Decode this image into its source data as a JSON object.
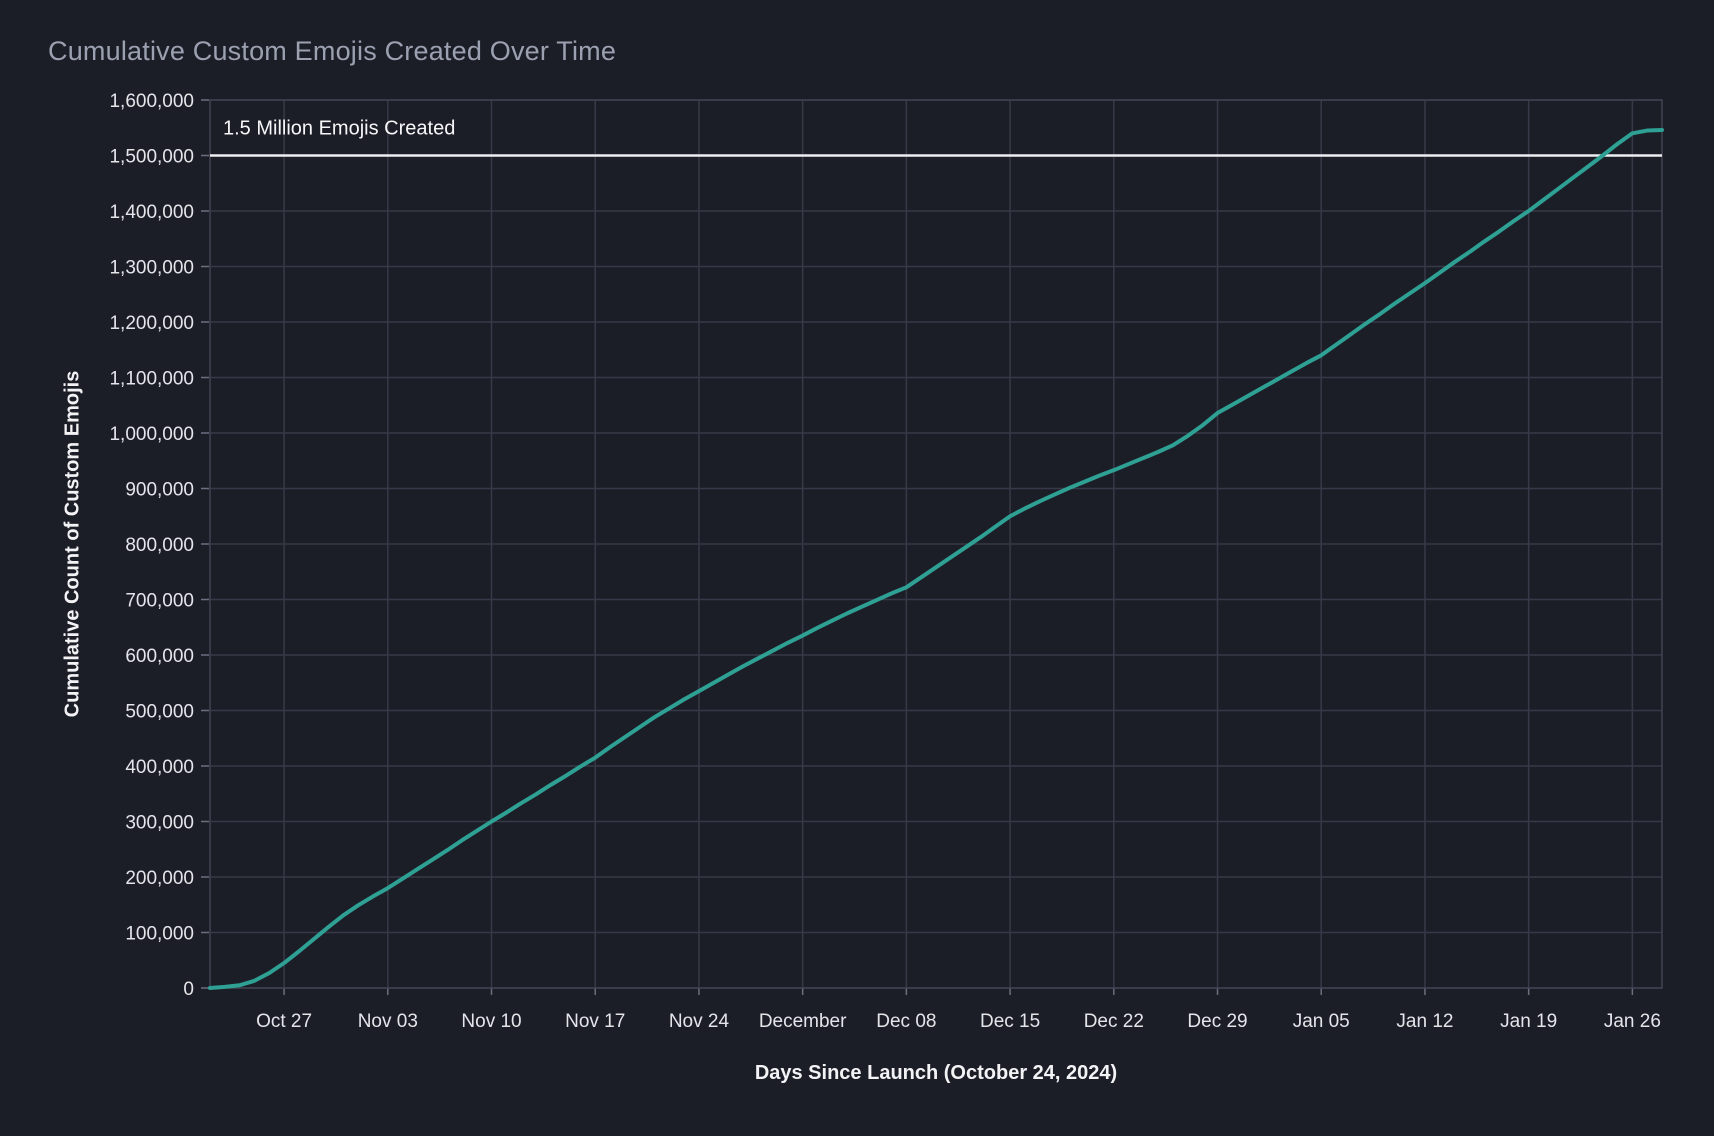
{
  "chart": {
    "title": "Cumulative Custom Emojis Created Over Time",
    "x_axis_title": "Days Since Launch (October 24, 2024)",
    "y_axis_title": "Cumulative Count of Custom Emojis",
    "annotation_label": "1.5 Million Emojis Created",
    "colors": {
      "background": "#1c1e27",
      "grid": "#373948",
      "spine": "#414352",
      "tick_mark": "#6b6e7e",
      "tick_label": "#e4e5ea",
      "title": "#9ba1b1",
      "axis_title": "#f3f3f6",
      "annotation": "#f6f6f8",
      "reference_line": "#eceef2",
      "series": "#2ea094"
    }
  },
  "chart_data": {
    "type": "line",
    "title": "Cumulative Custom Emojis Created Over Time",
    "xlabel": "Days Since Launch (October 24, 2024)",
    "ylabel": "Cumulative Count of Custom Emojis",
    "ylim": [
      0,
      1600000
    ],
    "y_tick_step": 100000,
    "grid": true,
    "legend": "none",
    "reference_line": {
      "y": 1500000,
      "label": "1.5 Million Emojis Created"
    },
    "x_ticks": [
      {
        "index": 5,
        "label": "Oct 27"
      },
      {
        "index": 12,
        "label": "Nov 03"
      },
      {
        "index": 19,
        "label": "Nov 10"
      },
      {
        "index": 26,
        "label": "Nov 17"
      },
      {
        "index": 33,
        "label": "Nov 24"
      },
      {
        "index": 40,
        "label": "December"
      },
      {
        "index": 47,
        "label": "Dec 08"
      },
      {
        "index": 54,
        "label": "Dec 15"
      },
      {
        "index": 61,
        "label": "Dec 22"
      },
      {
        "index": 68,
        "label": "Dec 29"
      },
      {
        "index": 75,
        "label": "Jan 05"
      },
      {
        "index": 82,
        "label": "Jan 12"
      },
      {
        "index": 89,
        "label": "Jan 19"
      },
      {
        "index": 96,
        "label": "Jan 26"
      }
    ],
    "series": [
      {
        "name": "Cumulative Custom Emojis",
        "color": "#2ea094",
        "dates": [
          "Oct 22",
          "Oct 23",
          "Oct 24",
          "Oct 25",
          "Oct 26",
          "Oct 27",
          "Oct 28",
          "Oct 29",
          "Oct 30",
          "Oct 31",
          "Nov 01",
          "Nov 02",
          "Nov 03",
          "Nov 04",
          "Nov 05",
          "Nov 06",
          "Nov 07",
          "Nov 08",
          "Nov 09",
          "Nov 10",
          "Nov 11",
          "Nov 12",
          "Nov 13",
          "Nov 14",
          "Nov 15",
          "Nov 16",
          "Nov 17",
          "Nov 18",
          "Nov 19",
          "Nov 20",
          "Nov 21",
          "Nov 22",
          "Nov 23",
          "Nov 24",
          "Nov 25",
          "Nov 26",
          "Nov 27",
          "Nov 28",
          "Nov 29",
          "Nov 30",
          "Dec 01",
          "Dec 02",
          "Dec 03",
          "Dec 04",
          "Dec 05",
          "Dec 06",
          "Dec 07",
          "Dec 08",
          "Dec 09",
          "Dec 10",
          "Dec 11",
          "Dec 12",
          "Dec 13",
          "Dec 14",
          "Dec 15",
          "Dec 16",
          "Dec 17",
          "Dec 18",
          "Dec 19",
          "Dec 20",
          "Dec 21",
          "Dec 22",
          "Dec 23",
          "Dec 24",
          "Dec 25",
          "Dec 26",
          "Dec 27",
          "Dec 28",
          "Dec 29",
          "Dec 30",
          "Dec 31",
          "Jan 01",
          "Jan 02",
          "Jan 03",
          "Jan 04",
          "Jan 05",
          "Jan 06",
          "Jan 07",
          "Jan 08",
          "Jan 09",
          "Jan 10",
          "Jan 11",
          "Jan 12",
          "Jan 13",
          "Jan 14",
          "Jan 15",
          "Jan 16",
          "Jan 17",
          "Jan 18",
          "Jan 19",
          "Jan 20",
          "Jan 21",
          "Jan 22",
          "Jan 23",
          "Jan 24",
          "Jan 25",
          "Jan 26",
          "Jan 27",
          "Jan 28"
        ],
        "values": [
          0,
          2000,
          5000,
          13000,
          27000,
          45000,
          66000,
          88000,
          110000,
          131000,
          149000,
          165000,
          180000,
          197000,
          214000,
          231000,
          248000,
          266000,
          283000,
          300000,
          316000,
          333000,
          349000,
          366000,
          382000,
          399000,
          415000,
          434000,
          452000,
          470000,
          488000,
          504000,
          520000,
          535000,
          550000,
          565000,
          580000,
          594000,
          608000,
          622000,
          635000,
          649000,
          662000,
          675000,
          687000,
          699000,
          711000,
          722000,
          740000,
          758000,
          776000,
          794000,
          812000,
          831000,
          850000,
          864000,
          877000,
          889000,
          901000,
          912000,
          923000,
          933000,
          944000,
          955000,
          966000,
          978000,
          995000,
          1014000,
          1036000,
          1051000,
          1066000,
          1081000,
          1096000,
          1111000,
          1126000,
          1140000,
          1159000,
          1178000,
          1197000,
          1215000,
          1234000,
          1252000,
          1270000,
          1289000,
          1308000,
          1326000,
          1345000,
          1363000,
          1382000,
          1400000,
          1420000,
          1440000,
          1460000,
          1480000,
          1500000,
          1521000,
          1540000,
          1545000,
          1546000
        ]
      }
    ]
  }
}
